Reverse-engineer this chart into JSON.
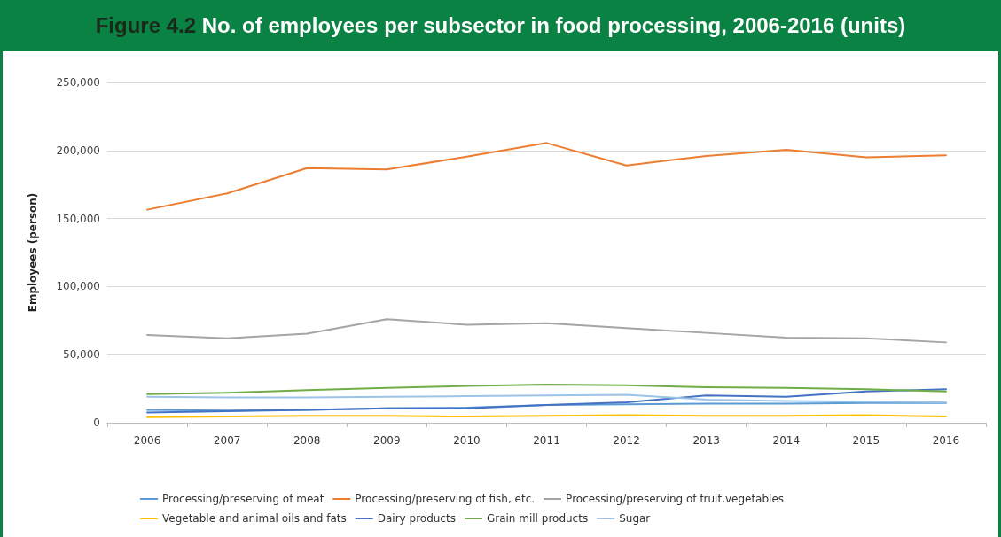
{
  "chart_data": {
    "type": "line",
    "title": "Figure 4.2 No. of employees per subsector in food processing, 2006-2016 (units)",
    "ylabel": "Employees (person)",
    "categories": [
      "2006",
      "2007",
      "2008",
      "2009",
      "2010",
      "2011",
      "2012",
      "2013",
      "2014",
      "2015",
      "2016"
    ],
    "series": [
      {
        "name": "Processing/preserving of meat",
        "color": "#5b9bd5",
        "values": [
          9500,
          9000,
          9500,
          10500,
          11000,
          13000,
          13500,
          14000,
          14000,
          14500,
          14500
        ]
      },
      {
        "name": "Processing/preserving of fish, etc.",
        "color": "#ed7d31",
        "values": [
          156500,
          168500,
          187000,
          186000,
          195500,
          205500,
          189000,
          196000,
          200500,
          195000,
          196500
        ]
      },
      {
        "name": "Processing/preserving of fruit,vegetables",
        "color": "#a5a5a5",
        "values": [
          64500,
          62000,
          65500,
          76000,
          72000,
          73000,
          69500,
          66000,
          62500,
          62000,
          59000
        ]
      },
      {
        "name": "Vegetable and animal oils and fats",
        "color": "#ffc000",
        "values": [
          4000,
          4500,
          5000,
          5000,
          4500,
          5000,
          5500,
          5000,
          5000,
          5500,
          4500
        ]
      },
      {
        "name": "Dairy products",
        "color": "#4472c4",
        "values": [
          7500,
          8500,
          9500,
          10500,
          10500,
          13000,
          15000,
          20000,
          19000,
          23000,
          24500
        ]
      },
      {
        "name": "Grain mill products",
        "color": "#70ad47",
        "values": [
          21000,
          22000,
          24000,
          25500,
          27000,
          28000,
          27500,
          26000,
          25500,
          24500,
          23000
        ]
      },
      {
        "name": "Sugar",
        "color": "#9dc3e6",
        "values": [
          19000,
          18500,
          18500,
          19000,
          19500,
          20000,
          20500,
          17000,
          16000,
          15500,
          15000
        ]
      }
    ],
    "ylim": [
      0,
      250000
    ],
    "yticks": [
      0,
      {
        "value": 50000,
        "label": "50,000"
      },
      {
        "value": 100000,
        "label": "100,000"
      },
      {
        "value": 150000,
        "label": "150,000"
      },
      {
        "value": 200000,
        "label": "200,000"
      },
      {
        "value": 250000,
        "label": "250,000"
      }
    ],
    "grid": "y",
    "legend": "bottom",
    "marker": "none",
    "line_style": "solid"
  }
}
